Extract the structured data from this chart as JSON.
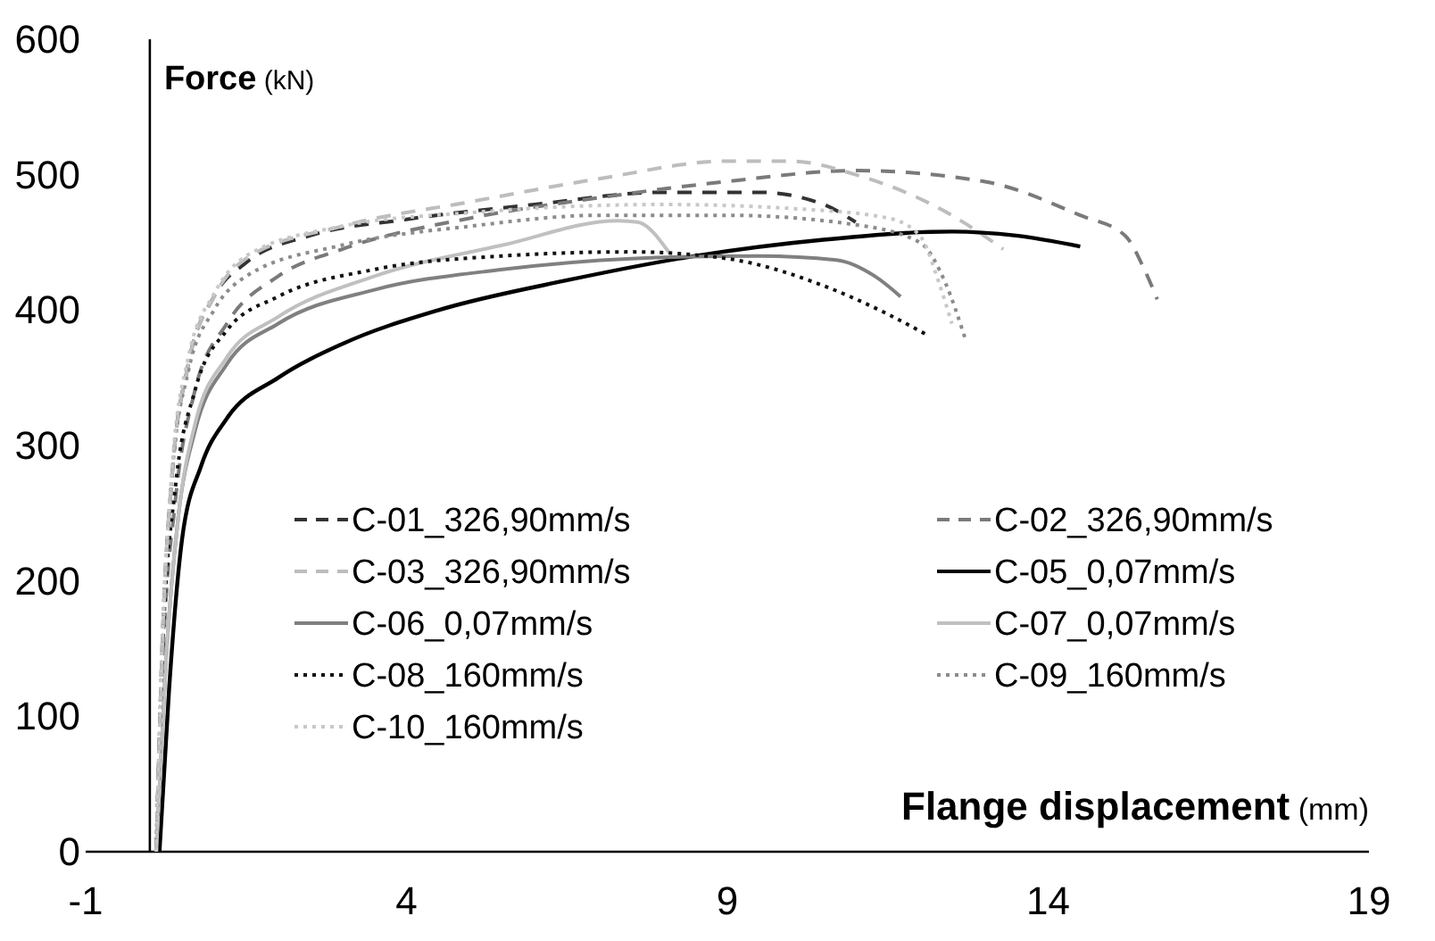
{
  "chart_data": {
    "type": "line",
    "xlabel": "Flange displacement (mm)",
    "ylabel": "Force (kN)",
    "xlim": [
      -1,
      19
    ],
    "xticks": [
      -1,
      4,
      9,
      14,
      19
    ],
    "ylim": [
      0,
      600
    ],
    "yticks": [
      0,
      100,
      200,
      300,
      400,
      500,
      600
    ],
    "grid": false,
    "legend": "center",
    "marker": "none",
    "series": [
      {
        "name": "C-01_326,90mm/s",
        "color": "#333333",
        "line_style": "dashed",
        "x": [
          0.1,
          0.2,
          0.35,
          0.6,
          1,
          1.5,
          2.5,
          4,
          6,
          8,
          9.5,
          10.5,
          11
        ],
        "values": [
          0,
          160,
          280,
          360,
          410,
          435,
          455,
          467,
          478,
          487,
          487,
          478,
          465
        ]
      },
      {
        "name": "C-02_326,90mm/s",
        "color": "#7a7a7a",
        "line_style": "dashed",
        "x": [
          0.1,
          0.2,
          0.4,
          0.7,
          1.2,
          2,
          3,
          5,
          7,
          9,
          11,
          13,
          14.5,
          15.2,
          15.5,
          15.7
        ],
        "values": [
          0,
          140,
          260,
          340,
          390,
          425,
          445,
          468,
          483,
          495,
          503,
          495,
          470,
          455,
          430,
          408
        ]
      },
      {
        "name": "C-03_326,90mm/s",
        "color": "#bdbdbd",
        "line_style": "dashed",
        "x": [
          0.1,
          0.2,
          0.35,
          0.6,
          1,
          1.5,
          3,
          5,
          7,
          9,
          10,
          11,
          12.5,
          13.3
        ],
        "values": [
          0,
          160,
          280,
          360,
          410,
          438,
          462,
          480,
          497,
          510,
          510,
          500,
          470,
          445
        ]
      },
      {
        "name": "C-05_0,07mm/s",
        "color": "#000000",
        "line_style": "solid",
        "x": [
          0.15,
          0.3,
          0.5,
          0.8,
          1.2,
          2,
          3,
          4.5,
          6.5,
          8.5,
          10.5,
          12.5,
          13.5,
          14.5
        ],
        "values": [
          0,
          120,
          230,
          285,
          320,
          350,
          375,
          400,
          422,
          440,
          452,
          458,
          455,
          447
        ]
      },
      {
        "name": "C-06_0,07mm/s",
        "color": "#808080",
        "line_style": "solid",
        "x": [
          0.1,
          0.25,
          0.45,
          0.7,
          1.2,
          2,
          3.5,
          5.5,
          7.5,
          9.5,
          10.7,
          11.3,
          11.7
        ],
        "values": [
          0,
          140,
          250,
          310,
          360,
          390,
          415,
          430,
          438,
          440,
          437,
          425,
          410
        ]
      },
      {
        "name": "C-07_0,07mm/s",
        "color": "#c0c0c0",
        "line_style": "solid",
        "x": [
          0.1,
          0.25,
          0.45,
          0.7,
          1.2,
          2,
          3.5,
          5.5,
          7.3,
          7.6,
          8.1
        ],
        "values": [
          0,
          140,
          250,
          315,
          365,
          395,
          425,
          448,
          466,
          465,
          442
        ]
      },
      {
        "name": "C-08_160mm/s",
        "color": "#111111",
        "line_style": "dotted",
        "x": [
          0.1,
          0.2,
          0.4,
          0.7,
          1.2,
          2,
          3.5,
          5.5,
          7.5,
          9,
          10.5,
          11.5,
          12.1
        ],
        "values": [
          0,
          150,
          270,
          340,
          385,
          410,
          430,
          440,
          443,
          438,
          418,
          397,
          382
        ]
      },
      {
        "name": "C-09_160mm/s",
        "color": "#8c8c8c",
        "line_style": "dotted",
        "x": [
          0.1,
          0.2,
          0.35,
          0.6,
          1,
          1.5,
          3,
          5,
          7,
          9,
          11,
          12,
          12.4,
          12.7
        ],
        "values": [
          0,
          160,
          280,
          355,
          400,
          425,
          448,
          462,
          470,
          470,
          463,
          450,
          420,
          380
        ]
      },
      {
        "name": "C-10_160mm/s",
        "color": "#c8c8c8",
        "line_style": "dotted",
        "x": [
          0.1,
          0.2,
          0.35,
          0.6,
          1,
          1.5,
          3,
          5,
          8,
          10,
          11.5,
          12,
          12.3,
          12.5
        ],
        "values": [
          0,
          160,
          285,
          365,
          412,
          440,
          462,
          472,
          478,
          475,
          468,
          455,
          420,
          390
        ]
      }
    ]
  }
}
